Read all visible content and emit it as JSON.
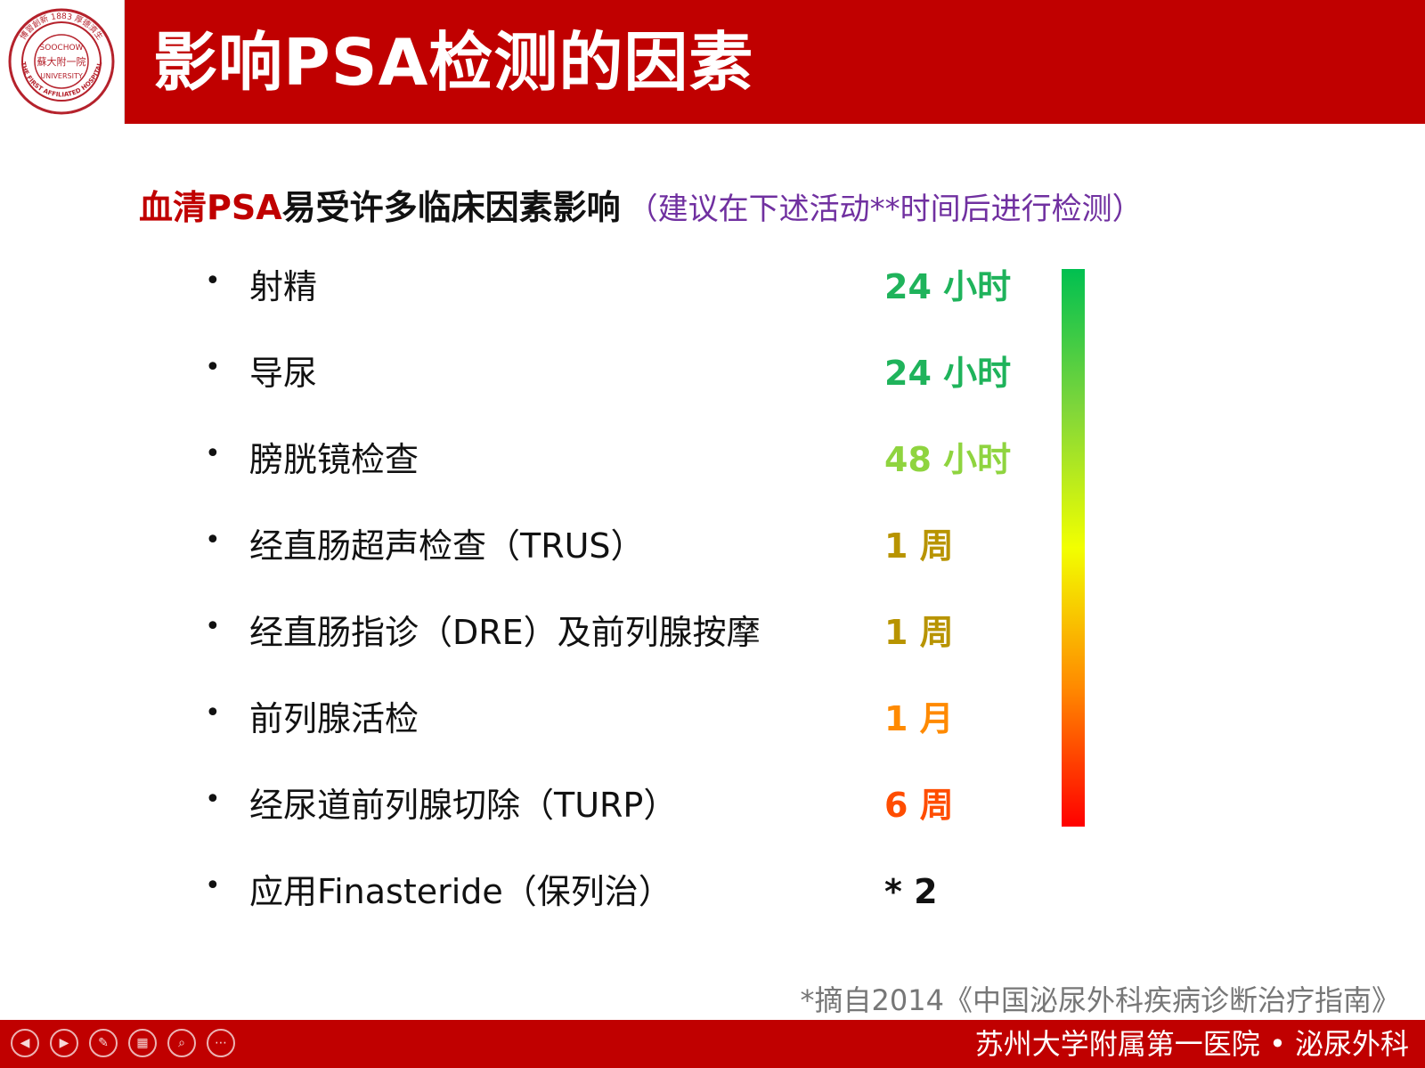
{
  "header": {
    "title": "影响PSA检测的因素",
    "logo": {
      "text_top": "SOOCHOW",
      "text_mid": "蘇大附一院",
      "text_bottom": "UNIVERSITY",
      "ring_text": "博習創新 1883 厚德濟生",
      "ring_text_bottom": "THE FIRST AFFILIATED HOSPITAL"
    }
  },
  "subtitle": {
    "part_red": "血清PSA",
    "part_black": "易受许多临床因素影响",
    "note": "（建议在下述活动**时间后进行检测）"
  },
  "bullet_char": "•",
  "items": [
    {
      "label": "射精",
      "value": "24 小时",
      "color": "#1fb35b"
    },
    {
      "label": "导尿",
      "value": "24 小时",
      "color": "#1fb35b"
    },
    {
      "label": "膀胱镜检查",
      "value": "48 小时",
      "color": "#8fd43f"
    },
    {
      "label": "经直肠超声检查（TRUS）",
      "value": "1 周",
      "color": "#b89400"
    },
    {
      "label": "经直肠指诊（DRE）及前列腺按摩",
      "value": "1 周",
      "color": "#b89400"
    },
    {
      "label": "前列腺活检",
      "value": "1 月",
      "color": "#ff8a00"
    },
    {
      "label": "经尿道前列腺切除（TURP）",
      "value": "6 周",
      "color": "#ff4d00"
    },
    {
      "label": "应用Finasteride（保列治）",
      "value": "* 2",
      "color": "#111111"
    }
  ],
  "source": "*摘自2014《中国泌尿外科疾病诊断治疗指南》",
  "footer": {
    "text": "苏州大学附属第一医院 • 泌尿外科",
    "controls": [
      "prev-icon",
      "next-icon",
      "pen-icon",
      "slides-icon",
      "zoom-icon",
      "more-icon"
    ]
  },
  "colors": {
    "brand_red": "#c00000",
    "note_purple": "#7030a0"
  }
}
